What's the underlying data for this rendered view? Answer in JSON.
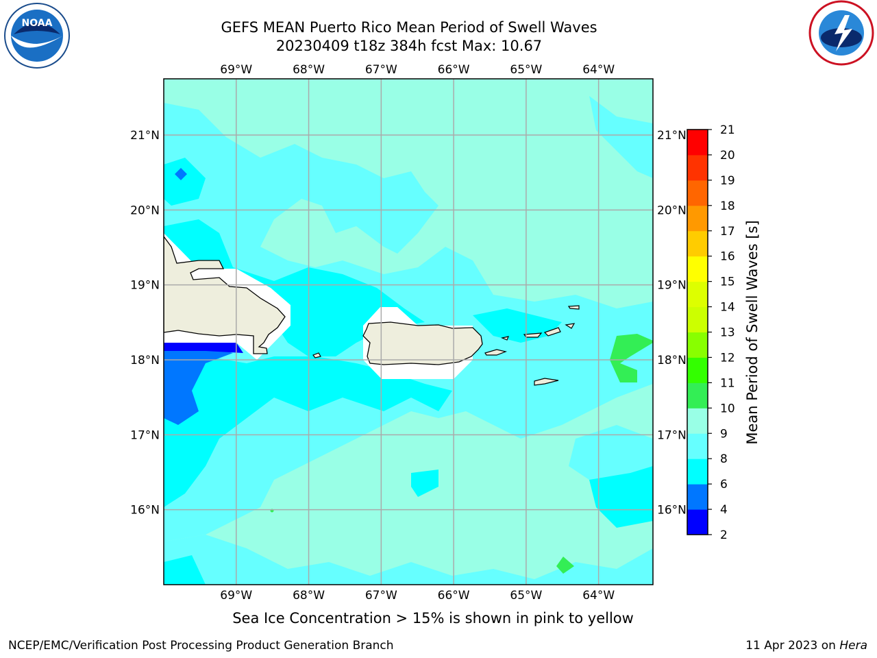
{
  "title_line1": "GEFS MEAN Puerto Rico Mean Period of Swell Waves",
  "title_line2": "20230409 t18z 384h fcst   Max: 10.67",
  "lon_labels": [
    "69°W",
    "68°W",
    "67°W",
    "66°W",
    "65°W",
    "64°W"
  ],
  "lat_labels": [
    "21°N",
    "20°N",
    "19°N",
    "18°N",
    "17°N",
    "16°N"
  ],
  "lon_values": [
    -69,
    -68,
    -67,
    -66,
    -65,
    -64
  ],
  "lat_values": [
    21,
    20,
    19,
    18,
    17,
    16
  ],
  "extent": {
    "lon_min": -70.0,
    "lon_max": -63.25,
    "lat_min": 15.0,
    "lat_max": 21.75
  },
  "colorbar": {
    "label": "Mean Period of Swell Waves [s]",
    "ticks": [
      "2",
      "4",
      "6",
      "8",
      "9",
      "10",
      "11",
      "12",
      "13",
      "14",
      "15",
      "16",
      "17",
      "18",
      "19",
      "20",
      "21"
    ],
    "colors": [
      "#0000ff",
      "#0077ff",
      "#00ffff",
      "#66ffff",
      "#99ffe6",
      "#33ee55",
      "#33ff00",
      "#88ff00",
      "#ccff00",
      "#ddff00",
      "#ffff00",
      "#ffcc00",
      "#ff9900",
      "#ff6600",
      "#ff3300",
      "#ff0000"
    ]
  },
  "colors": {
    "ocean_light": "#99ffe6",
    "ocean_mid": "#66ffff",
    "ocean_cyan": "#00ffff",
    "ocean_blue": "#0077ff",
    "ocean_deep": "#0000ff",
    "green": "#33ee55",
    "land": "#eeeedd",
    "mask": "#ffffff",
    "grid": "#aaaaaa"
  },
  "note": "Sea Ice Concentration > 15% is shown in pink to yellow",
  "footer_left": "NCEP/EMC/Verification Post Processing Product Generation Branch",
  "footer_right_prefix": "11 Apr 2023 on ",
  "footer_right_host": "Hera",
  "logos": {
    "left": "noaa-logo",
    "right": "nws-logo",
    "noaa_text": "NOAA"
  }
}
